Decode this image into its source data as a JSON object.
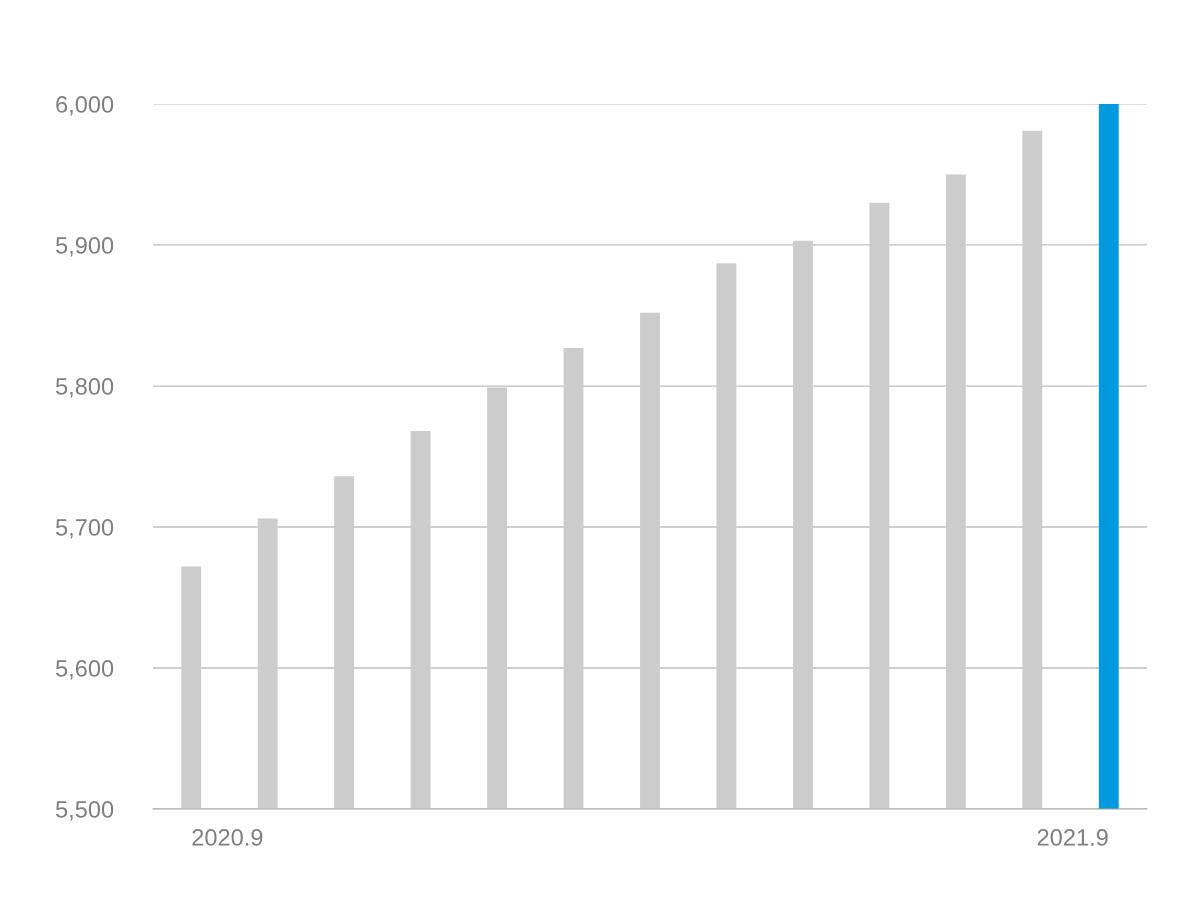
{
  "chart_data": {
    "type": "bar",
    "categories": [
      "2020.9",
      null,
      null,
      null,
      null,
      null,
      null,
      null,
      null,
      null,
      null,
      null,
      "2021.9"
    ],
    "values": [
      5672,
      5706,
      5736,
      5768,
      5799,
      5827,
      5852,
      5887,
      5903,
      5930,
      5950,
      5981,
      6000
    ],
    "colors": [
      "#cccccc",
      "#cccccc",
      "#cccccc",
      "#cccccc",
      "#cccccc",
      "#cccccc",
      "#cccccc",
      "#cccccc",
      "#cccccc",
      "#cccccc",
      "#cccccc",
      "#cccccc",
      "#0099dd"
    ],
    "ylim": [
      5500,
      6000
    ],
    "yticks": [
      {
        "value": 5500,
        "label": "5,500"
      },
      {
        "value": 5600,
        "label": "5,600"
      },
      {
        "value": 5700,
        "label": "5,700"
      },
      {
        "value": 5800,
        "label": "5,800"
      },
      {
        "value": 5900,
        "label": "5,900"
      },
      {
        "value": 6000,
        "label": "6,000"
      }
    ],
    "grid": "y"
  }
}
